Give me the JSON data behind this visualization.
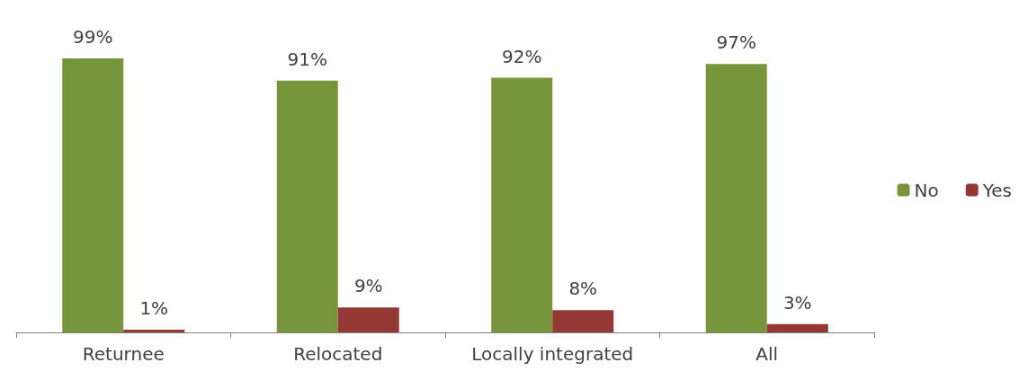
{
  "chart_data": {
    "type": "bar",
    "categories": [
      "Returnee",
      "Relocated",
      "Locally integrated",
      "All"
    ],
    "series": [
      {
        "name": "No",
        "color": "#77963c",
        "values": [
          99,
          91,
          92,
          97
        ],
        "value_labels": [
          "99%",
          "91%",
          "92%",
          "97%"
        ]
      },
      {
        "name": "Yes",
        "color": "#953735",
        "values": [
          1,
          9,
          8,
          3
        ],
        "value_labels": [
          "1%",
          "9%",
          "8%",
          "3%"
        ]
      }
    ],
    "legend": "right"
  }
}
